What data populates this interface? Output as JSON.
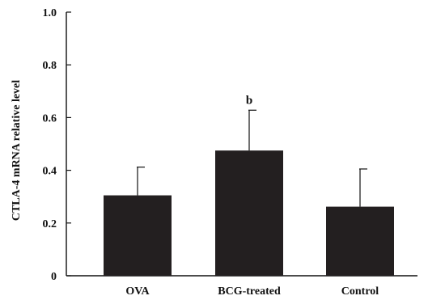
{
  "chart_data": {
    "type": "bar",
    "title": "",
    "xlabel": "",
    "ylabel": "CTLA-4 mRNA relative level",
    "categories": [
      "OVA",
      "BCG-treated",
      "Control"
    ],
    "values": [
      0.305,
      0.475,
      0.262
    ],
    "error_upper": [
      0.412,
      0.628,
      0.405
    ],
    "annotations": [
      "",
      "b",
      ""
    ],
    "ylim": [
      0,
      1.0
    ],
    "yticks": [
      0,
      0.2,
      0.4,
      0.6,
      0.8,
      1.0
    ],
    "ytick_labels": [
      "0",
      "0.2",
      "0.4",
      "0.6",
      "0.8",
      "1.0"
    ],
    "grid": false,
    "bar_color": "#231f20"
  }
}
